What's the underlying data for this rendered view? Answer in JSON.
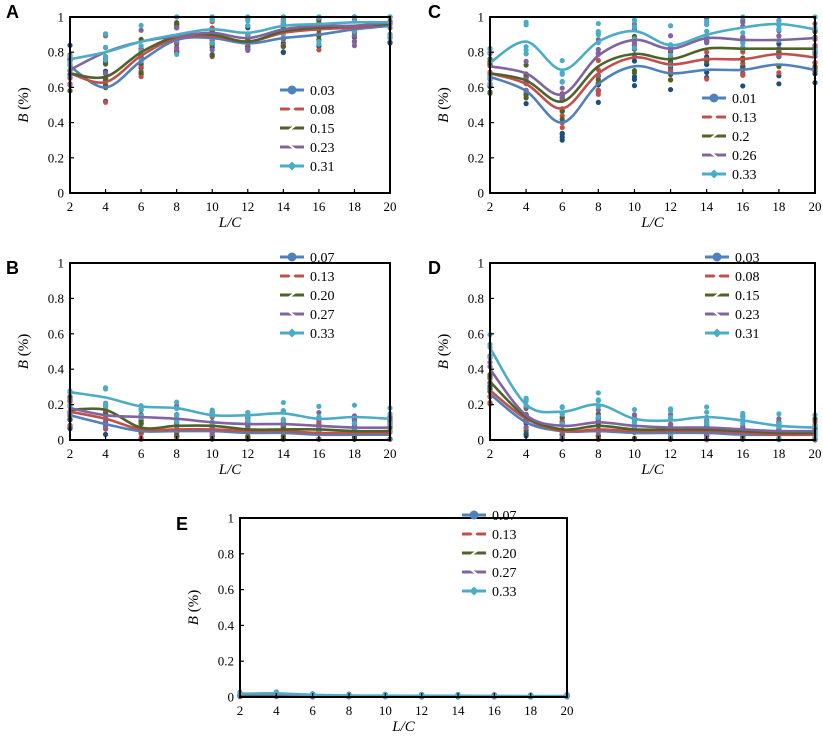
{
  "figure": {
    "colors": {
      "s1": "#4f81bd",
      "s2": "#c0504d",
      "s3": "#4f6228",
      "s4": "#8064a2",
      "s5": "#4bacc6",
      "scatter1": "#1f4e79",
      "scatter2": "#c0504d",
      "scatter3": "#4f6228",
      "scatter4": "#8064a2",
      "scatter5": "#4bacc6"
    }
  },
  "chart_data": [
    {
      "panel": "A",
      "type": "line",
      "xlabel": "L/C",
      "ylabel": "B (%)",
      "ylabel_var": "B",
      "ylabel_unit": " (%)",
      "xlabel_var": "L",
      "xlabel_unit": "/C",
      "x": [
        2,
        4,
        6,
        8,
        10,
        12,
        14,
        16,
        18,
        20
      ],
      "xlim": [
        2,
        20
      ],
      "ylim": [
        0,
        1
      ],
      "yticks": [
        "0",
        "0.2",
        "0.4",
        "0.6",
        "0.8",
        "1"
      ],
      "legend_position": "bottom-right",
      "series": [
        {
          "name": "0.03",
          "values": [
            0.72,
            0.6,
            0.75,
            0.87,
            0.88,
            0.85,
            0.88,
            0.9,
            0.93,
            0.95
          ]
        },
        {
          "name": "0.08",
          "values": [
            0.68,
            0.63,
            0.78,
            0.88,
            0.89,
            0.86,
            0.91,
            0.93,
            0.94,
            0.96
          ]
        },
        {
          "name": "0.15",
          "values": [
            0.68,
            0.66,
            0.8,
            0.89,
            0.9,
            0.86,
            0.92,
            0.94,
            0.95,
            0.96
          ]
        },
        {
          "name": "0.23",
          "values": [
            0.7,
            0.8,
            0.86,
            0.89,
            0.91,
            0.88,
            0.93,
            0.95,
            0.95,
            0.97
          ]
        },
        {
          "name": "0.31",
          "values": [
            0.76,
            0.8,
            0.86,
            0.9,
            0.93,
            0.91,
            0.95,
            0.96,
            0.97,
            0.97
          ]
        }
      ]
    },
    {
      "panel": "C",
      "type": "line",
      "xlabel": "L/C",
      "ylabel": "B (%)",
      "ylabel_var": "B",
      "ylabel_unit": " (%)",
      "xlabel_var": "L",
      "xlabel_unit": "/C",
      "x": [
        2,
        4,
        6,
        8,
        10,
        12,
        14,
        16,
        18,
        20
      ],
      "xlim": [
        2,
        20
      ],
      "ylim": [
        0,
        1
      ],
      "yticks": [
        "0",
        "0.2",
        "0.4",
        "0.6",
        "0.8",
        "1"
      ],
      "legend_position": "bottom-right",
      "series": [
        {
          "name": "0.01",
          "values": [
            0.66,
            0.58,
            0.4,
            0.62,
            0.72,
            0.68,
            0.7,
            0.7,
            0.73,
            0.7
          ]
        },
        {
          "name": "0.13",
          "values": [
            0.68,
            0.62,
            0.48,
            0.68,
            0.77,
            0.73,
            0.76,
            0.76,
            0.79,
            0.77
          ]
        },
        {
          "name": "0.2",
          "values": [
            0.68,
            0.64,
            0.52,
            0.72,
            0.79,
            0.76,
            0.82,
            0.82,
            0.82,
            0.82
          ]
        },
        {
          "name": "0.26",
          "values": [
            0.72,
            0.68,
            0.56,
            0.78,
            0.87,
            0.82,
            0.88,
            0.87,
            0.87,
            0.88
          ]
        },
        {
          "name": "0.33",
          "values": [
            0.74,
            0.86,
            0.7,
            0.86,
            0.92,
            0.84,
            0.9,
            0.94,
            0.96,
            0.93
          ]
        }
      ]
    },
    {
      "panel": "B",
      "type": "line",
      "xlabel": "L/C",
      "ylabel": "B (%)",
      "ylabel_var": "B",
      "ylabel_unit": " (%)",
      "xlabel_var": "L",
      "xlabel_unit": "/C",
      "x": [
        2,
        4,
        6,
        8,
        10,
        12,
        14,
        16,
        18,
        20
      ],
      "xlim": [
        2,
        20
      ],
      "ylim": [
        0,
        1
      ],
      "yticks": [
        "0",
        "0.2",
        "0.4",
        "0.6",
        "0.8",
        "1"
      ],
      "legend_position": "top-right",
      "series": [
        {
          "name": "0.07",
          "values": [
            0.14,
            0.09,
            0.05,
            0.05,
            0.05,
            0.04,
            0.04,
            0.03,
            0.03,
            0.03
          ]
        },
        {
          "name": "0.13",
          "values": [
            0.16,
            0.12,
            0.06,
            0.06,
            0.06,
            0.05,
            0.05,
            0.04,
            0.04,
            0.04
          ]
        },
        {
          "name": "0.20",
          "values": [
            0.17,
            0.17,
            0.07,
            0.08,
            0.08,
            0.06,
            0.06,
            0.06,
            0.05,
            0.05
          ]
        },
        {
          "name": "0.27",
          "values": [
            0.18,
            0.14,
            0.13,
            0.12,
            0.1,
            0.09,
            0.09,
            0.08,
            0.07,
            0.07
          ]
        },
        {
          "name": "0.33",
          "values": [
            0.27,
            0.24,
            0.19,
            0.18,
            0.14,
            0.14,
            0.15,
            0.12,
            0.13,
            0.12
          ]
        }
      ]
    },
    {
      "panel": "D",
      "type": "line",
      "xlabel": "L/C",
      "ylabel": "B (%)",
      "ylabel_var": "B",
      "ylabel_unit": " (%)",
      "xlabel_var": "L",
      "xlabel_unit": "/C",
      "x": [
        2,
        4,
        6,
        8,
        10,
        12,
        14,
        16,
        18,
        20
      ],
      "xlim": [
        2,
        20
      ],
      "ylim": [
        0,
        1
      ],
      "yticks": [
        "0",
        "0.2",
        "0.4",
        "0.6",
        "0.8",
        "1"
      ],
      "legend_position": "top-right",
      "series": [
        {
          "name": "0.03",
          "values": [
            0.26,
            0.1,
            0.05,
            0.05,
            0.04,
            0.04,
            0.04,
            0.03,
            0.03,
            0.03
          ]
        },
        {
          "name": "0.08",
          "values": [
            0.28,
            0.12,
            0.05,
            0.06,
            0.05,
            0.05,
            0.05,
            0.04,
            0.03,
            0.03
          ]
        },
        {
          "name": "0.15",
          "values": [
            0.33,
            0.13,
            0.06,
            0.08,
            0.06,
            0.06,
            0.06,
            0.05,
            0.04,
            0.04
          ]
        },
        {
          "name": "0.23",
          "values": [
            0.4,
            0.14,
            0.08,
            0.1,
            0.08,
            0.07,
            0.07,
            0.06,
            0.05,
            0.05
          ]
        },
        {
          "name": "0.31",
          "values": [
            0.52,
            0.2,
            0.16,
            0.2,
            0.12,
            0.11,
            0.13,
            0.11,
            0.08,
            0.07
          ]
        }
      ]
    },
    {
      "panel": "E",
      "type": "line",
      "xlabel": "L/C",
      "ylabel": "B (%)",
      "ylabel_var": "B",
      "ylabel_unit": " (%)",
      "xlabel_var": "L",
      "xlabel_unit": "/C",
      "x": [
        2,
        4,
        6,
        8,
        10,
        12,
        14,
        16,
        18,
        20
      ],
      "xlim": [
        2,
        20
      ],
      "ylim": [
        0,
        1
      ],
      "yticks": [
        "0",
        "0.2",
        "0.4",
        "0.6",
        "0.8",
        "1"
      ],
      "legend_position": "top-right",
      "series": [
        {
          "name": "0.07",
          "values": [
            0.01,
            0.008,
            0.006,
            0.005,
            0.005,
            0.004,
            0.004,
            0.004,
            0.003,
            0.003
          ]
        },
        {
          "name": "0.13",
          "values": [
            0.012,
            0.01,
            0.007,
            0.006,
            0.005,
            0.005,
            0.004,
            0.004,
            0.004,
            0.003
          ]
        },
        {
          "name": "0.20",
          "values": [
            0.014,
            0.012,
            0.008,
            0.006,
            0.006,
            0.005,
            0.005,
            0.004,
            0.004,
            0.004
          ]
        },
        {
          "name": "0.27",
          "values": [
            0.016,
            0.014,
            0.01,
            0.007,
            0.006,
            0.006,
            0.005,
            0.005,
            0.004,
            0.004
          ]
        },
        {
          "name": "0.33",
          "values": [
            0.018,
            0.02,
            0.012,
            0.008,
            0.007,
            0.006,
            0.006,
            0.005,
            0.005,
            0.005
          ]
        }
      ]
    }
  ]
}
